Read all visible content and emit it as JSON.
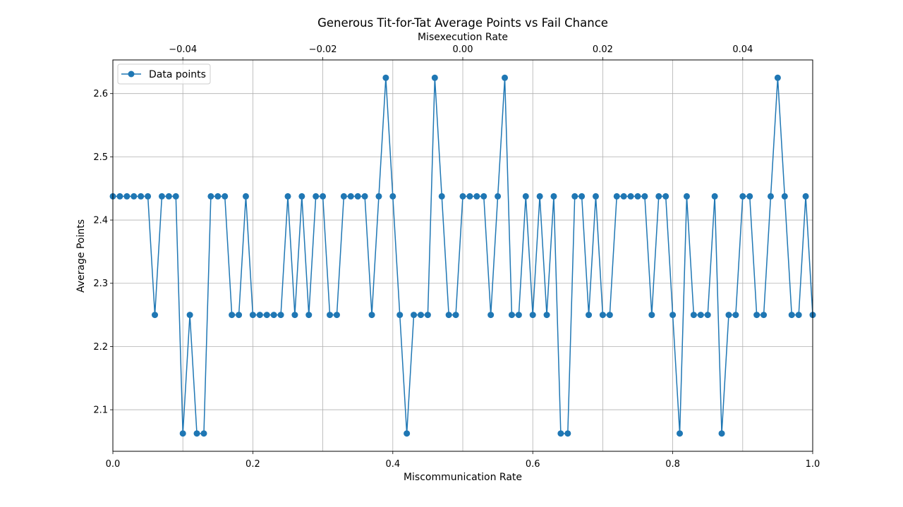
{
  "chart_data": {
    "type": "line",
    "title": "Generous Tit-for-Tat Average Points vs Fail Chance",
    "xlabel": "Miscommunication Rate",
    "ylabel": "Average Points",
    "x2label": "Misexecution Rate",
    "xlim": [
      0,
      1
    ],
    "ylim": [
      2.0343,
      2.6532
    ],
    "x2lim": [
      -0.05,
      0.05
    ],
    "x_ticks": [
      "0.0",
      "0.2",
      "0.4",
      "0.6",
      "0.8",
      "1.0"
    ],
    "x_tick_values": [
      0,
      0.2,
      0.4,
      0.6,
      0.8,
      1.0
    ],
    "x2_ticks": [
      "−0.04",
      "−0.02",
      "0.00",
      "0.02",
      "0.04"
    ],
    "x2_tick_values": [
      -0.04,
      -0.02,
      0,
      0.02,
      0.04
    ],
    "y_ticks": [
      "2.1",
      "2.2",
      "2.3",
      "2.4",
      "2.5",
      "2.6"
    ],
    "y_tick_values": [
      2.1,
      2.2,
      2.3,
      2.4,
      2.5,
      2.6
    ],
    "grid": true,
    "legend_position": "top-left",
    "color": "#1f77b4",
    "series": [
      {
        "name": "Data points",
        "x": [
          0.0,
          0.01,
          0.02,
          0.03,
          0.04,
          0.05,
          0.06,
          0.07,
          0.08,
          0.09,
          0.1,
          0.11,
          0.12,
          0.13,
          0.14,
          0.15,
          0.16,
          0.17,
          0.18,
          0.19,
          0.2,
          0.21,
          0.22,
          0.23,
          0.24,
          0.25,
          0.26,
          0.27,
          0.28,
          0.29,
          0.3,
          0.31,
          0.32,
          0.33,
          0.34,
          0.35,
          0.36,
          0.37,
          0.38,
          0.39,
          0.4,
          0.41,
          0.42,
          0.43,
          0.44,
          0.45,
          0.46,
          0.47,
          0.48,
          0.49,
          0.5,
          0.51,
          0.52,
          0.53,
          0.54,
          0.55,
          0.56,
          0.57,
          0.58,
          0.59,
          0.6,
          0.61,
          0.62,
          0.63,
          0.64,
          0.65,
          0.66,
          0.67,
          0.68,
          0.69,
          0.7,
          0.71,
          0.72,
          0.73,
          0.74,
          0.75,
          0.76,
          0.77,
          0.78,
          0.79,
          0.8,
          0.81,
          0.82,
          0.83,
          0.84,
          0.85,
          0.86,
          0.87,
          0.88,
          0.89,
          0.9,
          0.91,
          0.92,
          0.93,
          0.94,
          0.95,
          0.96,
          0.97,
          0.98,
          0.99,
          1.0
        ],
        "values": [
          2.4375,
          2.4375,
          2.4375,
          2.4375,
          2.4375,
          2.4375,
          2.25,
          2.4375,
          2.4375,
          2.4375,
          2.0625,
          2.25,
          2.0625,
          2.0625,
          2.4375,
          2.4375,
          2.4375,
          2.25,
          2.25,
          2.4375,
          2.25,
          2.25,
          2.25,
          2.25,
          2.25,
          2.4375,
          2.25,
          2.4375,
          2.25,
          2.4375,
          2.4375,
          2.25,
          2.25,
          2.4375,
          2.4375,
          2.4375,
          2.4375,
          2.25,
          2.4375,
          2.625,
          2.4375,
          2.25,
          2.0625,
          2.25,
          2.25,
          2.25,
          2.625,
          2.4375,
          2.25,
          2.25,
          2.4375,
          2.4375,
          2.4375,
          2.4375,
          2.25,
          2.4375,
          2.625,
          2.25,
          2.25,
          2.4375,
          2.25,
          2.4375,
          2.25,
          2.4375,
          2.0625,
          2.0625,
          2.4375,
          2.4375,
          2.25,
          2.4375,
          2.25,
          2.25,
          2.4375,
          2.4375,
          2.4375,
          2.4375,
          2.4375,
          2.25,
          2.4375,
          2.4375,
          2.25,
          2.0625,
          2.4375,
          2.25,
          2.25,
          2.25,
          2.4375,
          2.0625,
          2.25,
          2.25,
          2.4375,
          2.4375,
          2.25,
          2.25,
          2.4375,
          2.625,
          2.4375,
          2.25,
          2.25,
          2.4375,
          2.25
        ]
      }
    ]
  }
}
